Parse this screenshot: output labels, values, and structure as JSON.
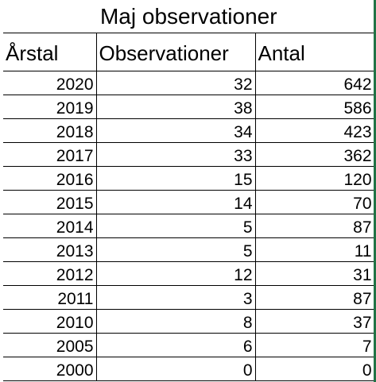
{
  "title": "Maj observationer",
  "headers": [
    "Årstal",
    "Observationer",
    "Antal"
  ],
  "rows": [
    [
      "2020",
      "32",
      "642"
    ],
    [
      "2019",
      "38",
      "586"
    ],
    [
      "2018",
      "34",
      "423"
    ],
    [
      "2017",
      "33",
      "362"
    ],
    [
      "2016",
      "15",
      "120"
    ],
    [
      "2015",
      "14",
      "70"
    ],
    [
      "2014",
      "5",
      "87"
    ],
    [
      "2013",
      "5",
      "11"
    ],
    [
      "2012",
      "12",
      "31"
    ],
    [
      "2011",
      "3",
      "87"
    ],
    [
      "2010",
      "8",
      "37"
    ],
    [
      "2005",
      "6",
      "7"
    ],
    [
      "2000",
      "0",
      "0"
    ]
  ],
  "colors": {
    "grid": "#000000",
    "selection": "#217346"
  }
}
